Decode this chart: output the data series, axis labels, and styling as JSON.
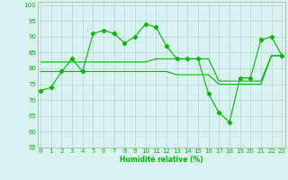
{
  "x": [
    0,
    1,
    2,
    3,
    4,
    5,
    6,
    7,
    8,
    9,
    10,
    11,
    12,
    13,
    14,
    15,
    16,
    17,
    18,
    19,
    20,
    21,
    22,
    23
  ],
  "y_main": [
    73,
    74,
    79,
    83,
    79,
    91,
    92,
    91,
    88,
    90,
    94,
    93,
    87,
    83,
    83,
    83,
    72,
    66,
    63,
    77,
    77,
    89,
    90,
    84
  ],
  "y_ref1": [
    82,
    82,
    82,
    82,
    82,
    82,
    82,
    82,
    82,
    82,
    82,
    83,
    83,
    83,
    83,
    83,
    83,
    76,
    76,
    76,
    76,
    76,
    84,
    84
  ],
  "y_ref2": [
    79,
    79,
    79,
    79,
    79,
    79,
    79,
    79,
    79,
    79,
    79,
    79,
    79,
    78,
    78,
    78,
    78,
    75,
    75,
    75,
    75,
    75,
    84,
    84
  ],
  "ylim": [
    55,
    101
  ],
  "xlim": [
    -0.3,
    23.3
  ],
  "yticks": [
    55,
    60,
    65,
    70,
    75,
    80,
    85,
    90,
    95,
    100
  ],
  "xticks": [
    0,
    1,
    2,
    3,
    4,
    5,
    6,
    7,
    8,
    9,
    10,
    11,
    12,
    13,
    14,
    15,
    16,
    17,
    18,
    19,
    20,
    21,
    22,
    23
  ],
  "xlabel": "Humidité relative (%)",
  "bg_color": "#d8f2f0",
  "line_color": "#00bb00",
  "grid_color": "#b8d4d0",
  "marker": "D",
  "marker_size": 2.2,
  "tick_fontsize": 5.0,
  "xlabel_fontsize": 5.5
}
